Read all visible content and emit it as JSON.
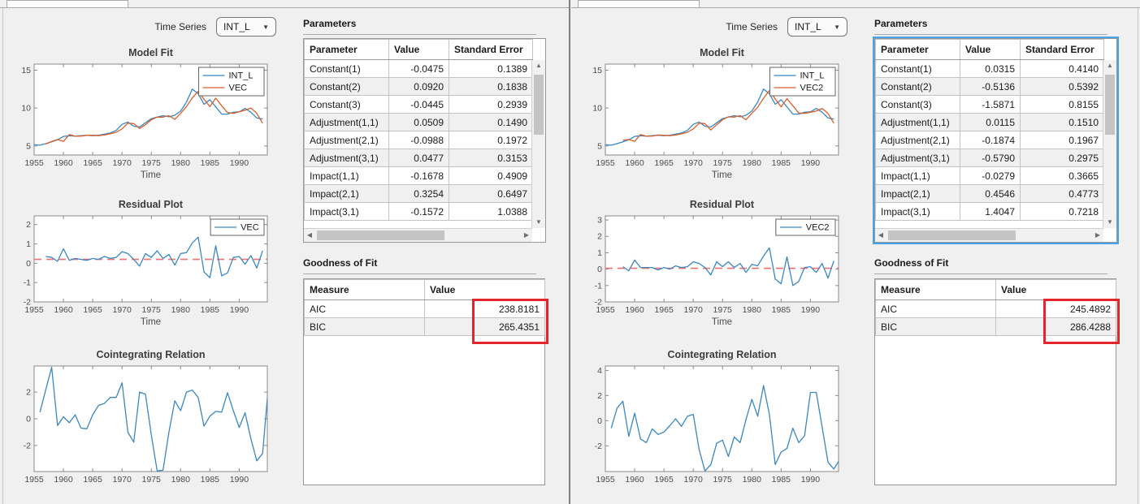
{
  "left": {
    "time_series_label": "Time Series",
    "time_series_value": "INT_L",
    "parameters_title": "Parameters",
    "parameters_columns": [
      "Parameter",
      "Value",
      "Standard Error"
    ],
    "parameters_rows": [
      [
        "Constant(1)",
        "-0.0475",
        "0.1389"
      ],
      [
        "Constant(2)",
        "0.0920",
        "0.1838"
      ],
      [
        "Constant(3)",
        "-0.0445",
        "0.2939"
      ],
      [
        "Adjustment(1,1)",
        "0.0509",
        "0.1490"
      ],
      [
        "Adjustment(2,1)",
        "-0.0988",
        "0.1972"
      ],
      [
        "Adjustment(3,1)",
        "0.0477",
        "0.3153"
      ],
      [
        "Impact(1,1)",
        "-0.1678",
        "0.4909"
      ],
      [
        "Impact(2,1)",
        "0.3254",
        "0.6497"
      ],
      [
        "Impact(3,1)",
        "-0.1572",
        "1.0388"
      ]
    ],
    "goodness_title": "Goodness of Fit",
    "goodness_columns": [
      "Measure",
      "Value"
    ],
    "goodness_rows": [
      [
        "AIC",
        "238.8181"
      ],
      [
        "BIC",
        "265.4351"
      ]
    ]
  },
  "right": {
    "time_series_label": "Time Series",
    "time_series_value": "INT_L",
    "parameters_title": "Parameters",
    "parameters_columns": [
      "Parameter",
      "Value",
      "Standard Error"
    ],
    "parameters_rows": [
      [
        "Constant(1)",
        "0.0315",
        "0.4140"
      ],
      [
        "Constant(2)",
        "-0.5136",
        "0.5392"
      ],
      [
        "Constant(3)",
        "-1.5871",
        "0.8155"
      ],
      [
        "Adjustment(1,1)",
        "0.0115",
        "0.1510"
      ],
      [
        "Adjustment(2,1)",
        "-0.1874",
        "0.1967"
      ],
      [
        "Adjustment(3,1)",
        "-0.5790",
        "0.2975"
      ],
      [
        "Impact(1,1)",
        "-0.0279",
        "0.3665"
      ],
      [
        "Impact(2,1)",
        "0.4546",
        "0.4773"
      ],
      [
        "Impact(3,1)",
        "1.4047",
        "0.7218"
      ]
    ],
    "goodness_title": "Goodness of Fit",
    "goodness_columns": [
      "Measure",
      "Value"
    ],
    "goodness_rows": [
      [
        "AIC",
        "245.4892"
      ],
      [
        "BIC",
        "286.4288"
      ]
    ]
  },
  "colors": {
    "line_blue": "#3a87c2",
    "line_orange": "#d95f2b",
    "refline_red": "#f47070",
    "highlight_red": "#e2262a",
    "focus_blue": "#47a3e9",
    "panel_bg": "#f0f0f0"
  },
  "chart_data": {
    "model_fit_left": {
      "type": "line",
      "title": "Model Fit",
      "xlabel": "Time",
      "xlim": [
        1955,
        1994.8
      ],
      "ylim": [
        3.8,
        15.8
      ],
      "xticks": [
        1955,
        1960,
        1965,
        1970,
        1975,
        1980,
        1985,
        1990
      ],
      "yticks": [
        5,
        10,
        15
      ],
      "legend": true,
      "series": [
        {
          "name": "INT_L",
          "color": "#3a87c2",
          "x0": 1955,
          "values": [
            5.15,
            5.1,
            5.3,
            5.55,
            5.8,
            6.25,
            6.35,
            6.3,
            6.35,
            6.4,
            6.35,
            6.4,
            6.55,
            6.7,
            7.05,
            7.85,
            8.15,
            7.6,
            7.5,
            8.05,
            8.6,
            8.8,
            9.0,
            8.85,
            9.05,
            9.6,
            10.8,
            12.5,
            11.9,
            10.5,
            11.1,
            10.15,
            9.2,
            9.2,
            9.45,
            9.5,
            9.95,
            9.45,
            8.7,
            8.55
          ]
        },
        {
          "name": "VEC",
          "color": "#d95f2b",
          "x0": 1957,
          "values": [
            5.25,
            5.6,
            5.85,
            5.6,
            6.5,
            6.3,
            6.3,
            6.4,
            6.4,
            6.35,
            6.45,
            6.6,
            6.8,
            7.25,
            8.0,
            7.95,
            7.3,
            7.8,
            8.45,
            8.8,
            8.8,
            9.0,
            8.5,
            9.3,
            10.2,
            11.35,
            12.2,
            11.15,
            10.2,
            11.3,
            10.3,
            9.4,
            9.3,
            9.5,
            9.7,
            10.0,
            9.3,
            8.0
          ]
        }
      ]
    },
    "residual_left": {
      "type": "line",
      "title": "Residual Plot",
      "xlabel": "Time",
      "xlim": [
        1955,
        1994.8
      ],
      "ylim": [
        -2,
        2.45
      ],
      "xticks": [
        1955,
        1960,
        1965,
        1970,
        1975,
        1980,
        1985,
        1990
      ],
      "yticks": [
        -2,
        -1,
        0,
        1,
        2
      ],
      "legend": true,
      "refline": 0.2,
      "series": [
        {
          "name": "VEC",
          "color": "#3a87c2",
          "x0": 1957,
          "values": [
            0.35,
            0.3,
            0.1,
            0.75,
            0.15,
            0.25,
            0.2,
            0.15,
            0.25,
            0.2,
            0.35,
            0.25,
            0.3,
            0.6,
            0.5,
            0.2,
            -0.15,
            0.5,
            0.3,
            0.65,
            0.25,
            0.45,
            -0.1,
            0.5,
            0.55,
            1.05,
            1.35,
            -0.45,
            -0.75,
            0.9,
            -0.65,
            -0.5,
            0.3,
            0.35,
            -0.05,
            0.4,
            -0.25,
            0.65
          ]
        }
      ]
    },
    "coint_left": {
      "type": "line",
      "title": "Cointegrating Relation",
      "xlabel": "",
      "xlim": [
        1955,
        1994.8
      ],
      "ylim": [
        -3.95,
        3.95
      ],
      "xticks": [
        1955,
        1960,
        1965,
        1970,
        1975,
        1980,
        1985,
        1990
      ],
      "yticks": [
        -2,
        0,
        2
      ],
      "legend": false,
      "series": [
        {
          "name": "Cointegrating relation 1",
          "color": "#3a87c2",
          "x0": 1956,
          "values": [
            0.5,
            2.2,
            3.85,
            -0.5,
            0.15,
            -0.3,
            0.3,
            -0.7,
            -0.75,
            0.3,
            1.0,
            1.15,
            1.6,
            1.6,
            2.7,
            -1.0,
            -1.75,
            2.0,
            1.85,
            -1.2,
            -3.9,
            -3.85,
            -1.0,
            1.35,
            0.6,
            2.0,
            2.15,
            1.6,
            -0.55,
            0.2,
            0.55,
            0.5,
            1.95,
            0.6,
            -0.65,
            0.45,
            -1.5,
            -3.15,
            -2.6,
            2.5
          ]
        }
      ]
    },
    "model_fit_right": {
      "type": "line",
      "title": "Model Fit",
      "xlabel": "Time",
      "xlim": [
        1955,
        1994.8
      ],
      "ylim": [
        3.8,
        15.8
      ],
      "xticks": [
        1955,
        1960,
        1965,
        1970,
        1975,
        1980,
        1985,
        1990
      ],
      "yticks": [
        5,
        10,
        15
      ],
      "legend": true,
      "series": [
        {
          "name": "INT_L",
          "color": "#3a87c2",
          "x0": 1955,
          "values": [
            5.15,
            5.1,
            5.3,
            5.55,
            5.8,
            6.25,
            6.35,
            6.3,
            6.35,
            6.4,
            6.35,
            6.4,
            6.55,
            6.7,
            7.05,
            7.85,
            8.15,
            7.6,
            7.5,
            8.05,
            8.6,
            8.8,
            9.0,
            8.85,
            9.05,
            9.6,
            10.8,
            12.5,
            11.9,
            10.5,
            11.1,
            10.15,
            9.2,
            9.2,
            9.45,
            9.5,
            9.95,
            9.45,
            8.7,
            8.55
          ]
        },
        {
          "name": "VEC2",
          "color": "#d95f2b",
          "x0": 1958,
          "values": [
            5.75,
            5.85,
            5.6,
            6.5,
            6.3,
            6.3,
            6.45,
            6.4,
            6.35,
            6.45,
            6.6,
            6.8,
            7.25,
            8.0,
            7.95,
            7.1,
            7.8,
            8.45,
            8.85,
            8.8,
            9.0,
            8.45,
            9.3,
            10.1,
            11.3,
            12.3,
            11.2,
            10.15,
            11.25,
            10.3,
            9.35,
            9.3,
            9.45,
            9.6,
            9.95,
            9.3,
            8.0
          ]
        }
      ]
    },
    "residual_right": {
      "type": "line",
      "title": "Residual Plot",
      "xlabel": "Time",
      "xlim": [
        1955,
        1994.8
      ],
      "ylim": [
        -2,
        3.25
      ],
      "xticks": [
        1955,
        1960,
        1965,
        1970,
        1975,
        1980,
        1985,
        1990
      ],
      "yticks": [
        -2,
        -1,
        0,
        1,
        2,
        3
      ],
      "legend": true,
      "refline": 0.05,
      "series": [
        {
          "name": "VEC2",
          "color": "#3a87c2",
          "x0": 1958,
          "values": [
            0.15,
            -0.1,
            0.55,
            0.1,
            0.1,
            0.1,
            -0.05,
            0.1,
            0.0,
            0.2,
            0.1,
            0.15,
            0.45,
            0.35,
            0.1,
            -0.35,
            0.45,
            0.15,
            0.45,
            0.1,
            0.35,
            -0.2,
            0.3,
            0.2,
            0.8,
            1.3,
            -0.6,
            -0.9,
            0.75,
            -1.0,
            -0.75,
            0.1,
            0.15,
            -0.2,
            0.35,
            -0.55,
            0.5
          ]
        }
      ]
    },
    "coint_right": {
      "type": "line",
      "title": "Cointegrating Relation",
      "xlabel": "",
      "xlim": [
        1955,
        1994.8
      ],
      "ylim": [
        -4.05,
        4.35
      ],
      "xticks": [
        1955,
        1960,
        1965,
        1970,
        1975,
        1980,
        1985,
        1990
      ],
      "yticks": [
        -2,
        0,
        2,
        4
      ],
      "legend": false,
      "series": [
        {
          "name": "Cointegrating relation 1",
          "color": "#3a87c2",
          "x0": 1956,
          "values": [
            -0.6,
            1.0,
            1.55,
            -1.25,
            0.6,
            -1.45,
            -1.75,
            -0.65,
            -1.1,
            -0.9,
            -0.4,
            0.15,
            -0.45,
            0.35,
            0.5,
            -2.3,
            -4.0,
            -3.5,
            -1.8,
            -1.55,
            -2.85,
            -1.3,
            -1.75,
            0.1,
            1.7,
            0.35,
            2.8,
            0.5,
            -3.5,
            -2.5,
            -2.2,
            -0.6,
            -1.75,
            -1.2,
            2.25,
            2.25,
            -0.5,
            -3.3,
            -3.85,
            -3.1
          ]
        }
      ]
    }
  }
}
